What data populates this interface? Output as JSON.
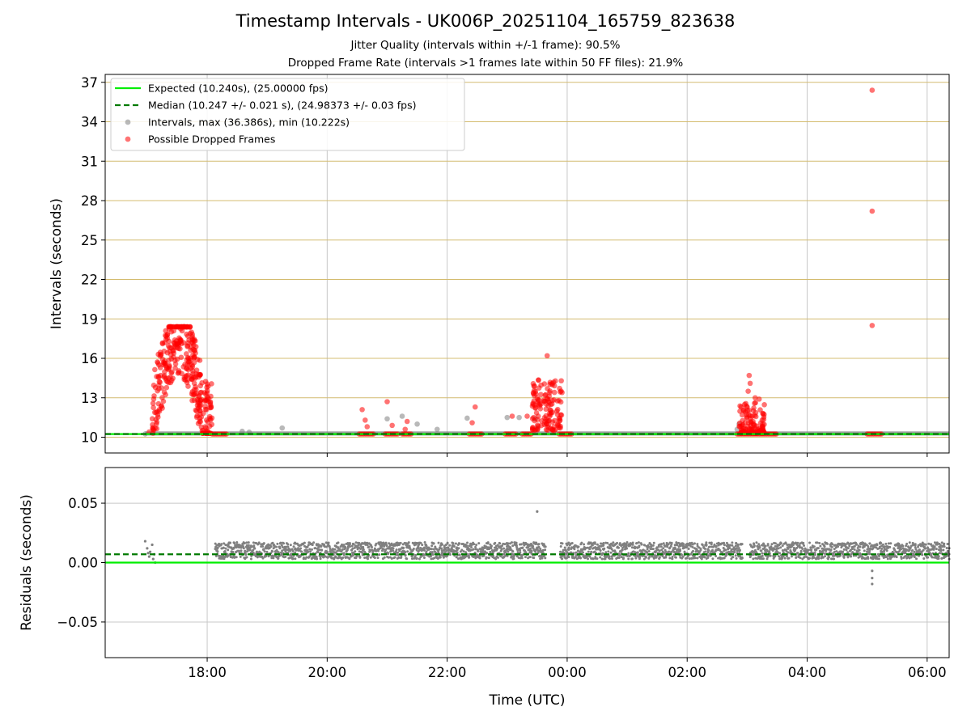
{
  "figure": {
    "title": "Timestamp Intervals - UK006P_20251104_165759_823638",
    "subtitle_jitter": "Jitter Quality (intervals within +/-1 frame): 90.5%",
    "subtitle_dropped": "Dropped Frame Rate (intervals >1 frames late within 50 FF files): 21.9%"
  },
  "colors": {
    "expected_line": "#00ee00",
    "median_line": "#007a00",
    "intervals_point": "#808080",
    "dropped_point": "#ff0000",
    "horizontal_grid_top": "#d4bc70",
    "grid": "#c8c8c8"
  },
  "chart_data": [
    {
      "type": "scatter",
      "name": "intervals",
      "xlabel": "",
      "ylabel": "Intervals (seconds)",
      "x_axis_time_range": [
        "16:18",
        "06:22"
      ],
      "ylim": [
        8.8,
        37.6
      ],
      "x_ticks": [
        "18:00",
        "20:00",
        "22:00",
        "00:00",
        "02:00",
        "04:00",
        "06:00"
      ],
      "y_ticks": [
        "10",
        "13",
        "16",
        "19",
        "22",
        "25",
        "28",
        "31",
        "34",
        "37"
      ],
      "grid": "on",
      "legend_placement": "top-left",
      "legend": [
        "Expected (10.240s), (25.00000 fps)",
        "Median (10.247 +/- 0.021 s), (24.98373 +/- 0.03 fps)",
        "Intervals, max (36.386s), min (10.222s)",
        "Possible Dropped Frames"
      ],
      "expected_interval": 10.24,
      "median_interval": 10.247,
      "series": [
        {
          "name": "Intervals, max (36.386s), min (10.222s)",
          "style": "gray points",
          "points": [
            [
              "16:58",
              10.25
            ],
            [
              "18:35",
              10.45
            ],
            [
              "18:42",
              10.38
            ],
            [
              "19:15",
              10.7
            ],
            [
              "21:00",
              11.4
            ],
            [
              "21:15",
              11.6
            ],
            [
              "21:30",
              11.0
            ],
            [
              "21:50",
              10.6
            ],
            [
              "22:20",
              11.45
            ],
            [
              "23:00",
              11.5
            ],
            [
              "23:12",
              11.5
            ],
            [
              "23:28",
              11.4
            ],
            [
              "23:30",
              10.7
            ],
            [
              "02:50",
              10.6
            ],
            [
              "02:52",
              11.0
            ]
          ],
          "baseline_band": {
            "from": "16:58",
            "to": "06:22",
            "value_range": [
              10.22,
              10.35
            ]
          }
        },
        {
          "name": "Possible Dropped Frames",
          "style": "red points",
          "points": [
            [
              "05:05",
              36.4
            ],
            [
              "05:05",
              27.2
            ],
            [
              "05:05",
              18.5
            ],
            [
              "23:40",
              16.2
            ],
            [
              "03:02",
              14.7
            ],
            [
              "03:03",
              14.1
            ],
            [
              "03:01",
              13.5
            ],
            [
              "03:08",
              13.0
            ],
            [
              "03:12",
              12.9
            ],
            [
              "03:00",
              12.3
            ],
            [
              "02:55",
              11.7
            ],
            [
              "02:58",
              11.1
            ],
            [
              "03:05",
              11.6
            ],
            [
              "03:15",
              11.3
            ],
            [
              "20:35",
              12.1
            ],
            [
              "20:38",
              11.3
            ],
            [
              "20:40",
              10.8
            ],
            [
              "21:00",
              12.7
            ],
            [
              "21:05",
              10.9
            ],
            [
              "21:20",
              11.2
            ],
            [
              "21:18",
              10.6
            ],
            [
              "22:28",
              12.3
            ],
            [
              "22:25",
              11.1
            ],
            [
              "23:05",
              11.6
            ],
            [
              "23:20",
              11.6
            ],
            [
              "17:55",
              10.5
            ],
            [
              "17:02",
              10.4
            ]
          ],
          "clusters": [
            {
              "from": "17:05",
              "to": "18:05",
              "value_range": [
                10.3,
                18.4
              ]
            },
            {
              "from": "23:25",
              "to": "23:55",
              "value_range": [
                10.5,
                14.5
              ]
            },
            {
              "from": "02:52",
              "to": "03:18",
              "value_range": [
                10.3,
                12.8
              ]
            }
          ],
          "baseline_runs": [
            {
              "from": "18:05",
              "to": "18:20"
            },
            {
              "from": "20:32",
              "to": "20:48"
            },
            {
              "from": "20:58",
              "to": "21:12"
            },
            {
              "from": "21:15",
              "to": "21:25"
            },
            {
              "from": "22:22",
              "to": "22:35"
            },
            {
              "from": "22:58",
              "to": "23:10"
            },
            {
              "from": "23:15",
              "to": "23:25"
            },
            {
              "from": "23:52",
              "to": "00:05"
            },
            {
              "from": "02:50",
              "to": "03:30"
            },
            {
              "from": "05:00",
              "to": "05:15"
            }
          ]
        }
      ]
    },
    {
      "type": "scatter",
      "name": "residuals",
      "xlabel": "Time (UTC)",
      "ylabel": "Residuals (seconds)",
      "ylim": [
        -0.08,
        0.08
      ],
      "y_ticks": [
        "0.05",
        "0.00",
        "−0.05"
      ],
      "x_ticks": [
        "18:00",
        "20:00",
        "22:00",
        "00:00",
        "02:00",
        "04:00",
        "06:00"
      ],
      "expected_residual": 0.0,
      "median_residual": 0.007,
      "series": [
        {
          "name": "residuals",
          "style": "gray points",
          "band": {
            "from": "18:08",
            "to": "06:22",
            "value_range": [
              0.003,
              0.017
            ]
          },
          "gaps": [
            {
              "from": "23:38",
              "to": "23:52"
            },
            {
              "from": "02:55",
              "to": "03:02"
            }
          ],
          "points": [
            [
              "16:58",
              0.018
            ],
            [
              "17:00",
              0.012
            ],
            [
              "17:01",
              0.008
            ],
            [
              "17:02",
              0.005
            ],
            [
              "17:03",
              0.009
            ],
            [
              "17:05",
              0.015
            ],
            [
              "17:06",
              0.003
            ],
            [
              "17:07",
              0.007
            ],
            [
              "17:08",
              0.0
            ],
            [
              "23:30",
              0.043
            ],
            [
              "05:05",
              -0.007
            ],
            [
              "05:05",
              -0.013
            ],
            [
              "05:05",
              -0.018
            ]
          ]
        }
      ]
    }
  ]
}
